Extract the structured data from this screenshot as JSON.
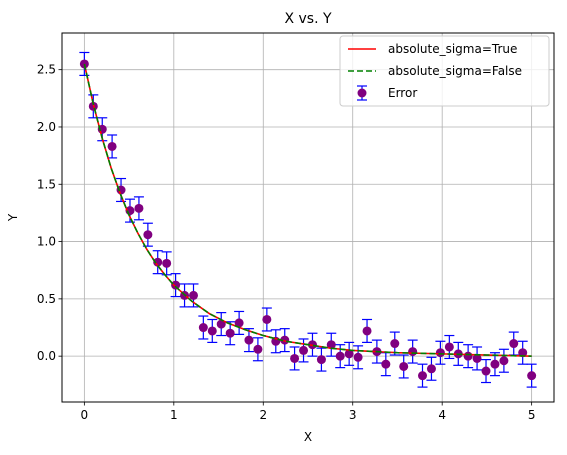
{
  "chart_data": {
    "type": "scatter",
    "title": "X vs. Y",
    "xlabel": "X",
    "ylabel": "Y",
    "xlim": [
      -0.25,
      5.25
    ],
    "ylim": [
      -0.4,
      2.82
    ],
    "xticks": [
      0,
      1,
      2,
      3,
      4,
      5
    ],
    "xtick_labels": [
      "0",
      "1",
      "2",
      "3",
      "4",
      "5"
    ],
    "yticks": [
      0.0,
      0.5,
      1.0,
      1.5,
      2.0,
      2.5
    ],
    "ytick_labels": [
      "0.0",
      "0.5",
      "1.0",
      "1.5",
      "2.0",
      "2.5"
    ],
    "grid": true,
    "legend_position": "top-right",
    "error_bar_halfwidth": 0.1,
    "series": [
      {
        "name": "absolute_sigma=True",
        "kind": "line",
        "style": "solid",
        "color": "#ff0000",
        "x": [
          0,
          0.1,
          0.2,
          0.3,
          0.4,
          0.5,
          0.6,
          0.7,
          0.8,
          0.9,
          1.0,
          1.2,
          1.4,
          1.6,
          1.8,
          2.0,
          2.25,
          2.5,
          2.75,
          3.0,
          3.5,
          4.0,
          4.5,
          5.0
        ],
        "y": [
          2.55,
          2.2,
          1.9,
          1.64,
          1.42,
          1.23,
          1.07,
          0.93,
          0.81,
          0.71,
          0.62,
          0.48,
          0.37,
          0.29,
          0.23,
          0.18,
          0.13,
          0.1,
          0.07,
          0.05,
          0.03,
          0.02,
          0.01,
          0.0
        ]
      },
      {
        "name": "absolute_sigma=False",
        "kind": "line",
        "style": "dashed",
        "color": "#008000",
        "x": [
          0,
          0.1,
          0.2,
          0.3,
          0.4,
          0.5,
          0.6,
          0.7,
          0.8,
          0.9,
          1.0,
          1.2,
          1.4,
          1.6,
          1.8,
          2.0,
          2.25,
          2.5,
          2.75,
          3.0,
          3.5,
          4.0,
          4.5,
          5.0
        ],
        "y": [
          2.55,
          2.2,
          1.9,
          1.64,
          1.42,
          1.23,
          1.07,
          0.93,
          0.81,
          0.71,
          0.62,
          0.48,
          0.37,
          0.29,
          0.23,
          0.18,
          0.13,
          0.1,
          0.07,
          0.05,
          0.03,
          0.02,
          0.01,
          0.0
        ]
      },
      {
        "name": "Error",
        "kind": "errorbar",
        "marker_color": "#800080",
        "errorbar_color": "#0000ff",
        "x": [
          0.0,
          0.1,
          0.2,
          0.31,
          0.41,
          0.51,
          0.61,
          0.71,
          0.82,
          0.92,
          1.02,
          1.12,
          1.22,
          1.33,
          1.43,
          1.53,
          1.63,
          1.73,
          1.84,
          1.94,
          2.04,
          2.14,
          2.24,
          2.35,
          2.45,
          2.55,
          2.65,
          2.76,
          2.86,
          2.96,
          3.06,
          3.16,
          3.27,
          3.37,
          3.47,
          3.57,
          3.67,
          3.78,
          3.88,
          3.98,
          4.08,
          4.18,
          4.29,
          4.39,
          4.49,
          4.59,
          4.69,
          4.8,
          4.9,
          5.0
        ],
        "y": [
          2.55,
          2.18,
          1.98,
          1.83,
          1.45,
          1.27,
          1.29,
          1.06,
          0.82,
          0.81,
          0.62,
          0.53,
          0.53,
          0.25,
          0.22,
          0.28,
          0.2,
          0.29,
          0.14,
          0.06,
          0.32,
          0.13,
          0.14,
          -0.02,
          0.05,
          0.1,
          -0.03,
          0.1,
          0.0,
          0.02,
          -0.01,
          0.22,
          0.04,
          -0.07,
          0.11,
          -0.09,
          0.04,
          -0.17,
          -0.11,
          0.03,
          0.08,
          0.02,
          0.0,
          -0.02,
          -0.13,
          -0.07,
          -0.04,
          0.11,
          0.03,
          -0.17
        ],
        "yerr": 0.1
      }
    ]
  }
}
